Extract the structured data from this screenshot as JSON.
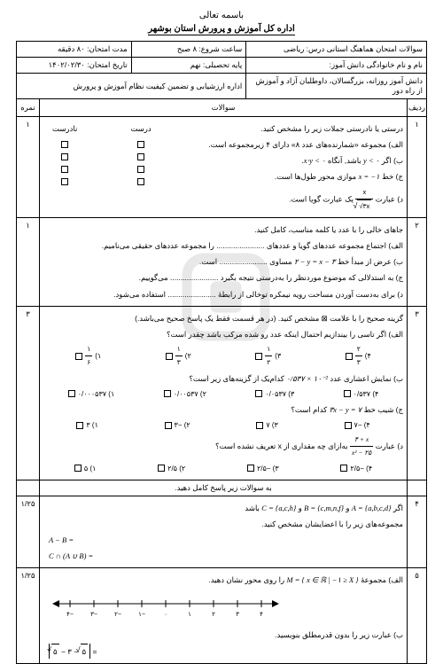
{
  "header": {
    "bismillah": "باسمه تعالی",
    "organization": "اداره کل آموزش و پرورش استان بوشهر"
  },
  "meta": {
    "r1c1": "سوالات امتحان هماهنگ استانی درس: ریاضی",
    "r1c2": "ساعت شروع: ۸ صبح",
    "r1c3": "مدت امتحان: ۸۰ دقیقه",
    "r2c1": "نام و نام خانوادگی دانش آموز:",
    "r2c2": "پایه تحصیلی: نهم",
    "r2c3": "تاریخ امتحان: ۱۴۰۲/۰۲/۳۰",
    "r3c1": "دانش آموز روزانه، بزرگسالان، داوطلبان آزاد و آموزش از راه دور",
    "r3c2": "اداره ارزشیابی و تضمین کیفیت نظام آموزش و پرورش"
  },
  "columns": {
    "radif": "ردیف",
    "soalat": "سوالات",
    "nomre": "نمره"
  },
  "q1": {
    "num": "۱",
    "score": "۱",
    "intro": "درستی یا نادرستی جملات زیر را مشخص کنید.",
    "tf_true": "درست",
    "tf_false": "نادرست",
    "a": "الف) مجموعه «شمارنده‌های عدد ۸» دارای ۴ زیرمجموعه است.",
    "b_pre": "ب) اگر ",
    "b_math": "y < ۰",
    "b_post": " باشد, آنگاه ",
    "b_math2": "x⋅y < ۰",
    "b_end": ".",
    "c_pre": "ج) خط ",
    "c_math": "x = −۱",
    "c_post": " موازی محور طول‌ها است.",
    "d_pre": "د) عبارت ",
    "d_frac_n": "x",
    "d_frac_d": "√۳x",
    "d_post": " یک عبارت گویا است."
  },
  "q2": {
    "num": "۲",
    "score": "۱",
    "intro": "جاهای خالی را با عدد یا کلمه مناسب، کامل کنید.",
    "a": "الف) اجتماع مجموعه عددهای گویا و عددهای ....................... را مجموعه عددهای حقیقی می‌نامیم.",
    "b_pre": "ب) عرض از مبدأ خط ",
    "b_math": "۲ − y = x − ۳",
    "b_post": " مساوی ....................... است.",
    "c": "ج) به استدلالی که موضوع موردنظر را به‌درستی نتیجه بگیرد ....................... می‌گوییم.",
    "d": "د) برای به‌دست آوردن مساحت رویه نیمکره توخالی از رابطهٔ ....................... استفاده می‌شود."
  },
  "q3": {
    "num": "۳",
    "score": "۳",
    "intro": "گزینه صحیح را با علامت ⊠ مشخص کنید. (در هر قسمت فقط یک پاسخ صحیح می‌باشد.)",
    "a": "الف) اگر تاسی را بیندازیم احتمال اینکه عدد رو شده مرکب باشد چقدر است؟",
    "a1": "۱)",
    "a1v_n": "۱",
    "a1v_d": "۶",
    "a2": "۲)",
    "a2v_n": "۱",
    "a2v_d": "۳",
    "a3": "۳)",
    "a3v_n": "۱",
    "a3v_d": "۲",
    "a4": "۴)",
    "a4v_n": "۲",
    "a4v_d": "۳",
    "b_pre": "ب) نمایش اعشاری عدد ",
    "b_math": "۰/۵۳۷ × ۱۰⁻²",
    "b_post": " کدام‌یک از گزینه‌های زیر است؟",
    "b1": "۱) ۰/۰۰۰۵۳۷",
    "b2": "۲) ۰/۰۰۵۳۷",
    "b3": "۳) ۰/۰۵۳۷",
    "b4": "۴) ۰/۵۳۷",
    "c_pre": "ج) شیب خط ",
    "c_math": "۳x − y = ۷",
    "c_post": " کدام است؟",
    "c1": "۱) ۳",
    "c2": "۲) −۳",
    "c3": "۳) ۷",
    "c4": "۴) −۷",
    "d_pre": "د) عبارت ",
    "d_math_n": "۴ + x",
    "d_math_d": "x² − ۲۵",
    "d_post": " به‌ازای چه مقداری از x تعریف نشده است؟",
    "d1": "۱) ۵",
    "d2": "۲) ۲/۵",
    "d3": "۳) −۲/۵",
    "d4": "۴) −۲/۵"
  },
  "q4": {
    "num": "۴",
    "score": "۱/۲۵",
    "intro": "به سوالات زیر پاسخ کامل دهید.",
    "a_pre": "اگر ",
    "a_A": "A = {a,b,c,d}",
    "a_and": " و ",
    "a_B": "B = {c,m,n,f}",
    "a_and2": " و ",
    "a_C": "C = {a,c,h}",
    "a_post": " باشد",
    "a2": "مجموعه‌های زیر را با اعضایشان مشخص کنید.",
    "e1": "A − B =",
    "e2": "C ∩ (A ∪ B) ="
  },
  "q5": {
    "num": "۵",
    "score": "۱/۲۵",
    "a_pre": "الف) مجموعهٔ ",
    "a_math": "M = { x ∈ ℝ | −۱ ≥ X }",
    "a_post": " را روی محور نشان دهید.",
    "ticks": [
      "−۴",
      "−۳",
      "−۲",
      "−۱",
      "۰",
      "۱",
      "۲",
      "۳",
      "۴"
    ],
    "b": "ب) عبارت زیر را بدون قدرمطلق بنویسید.",
    "expr_l": "۵",
    "expr_m": "− ۳ −",
    "expr_r": "۵"
  }
}
